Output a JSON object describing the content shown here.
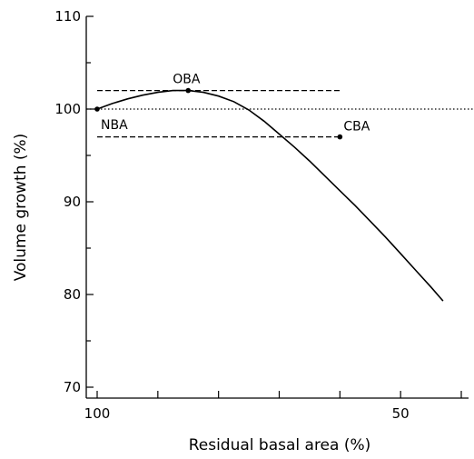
{
  "chart_data": {
    "type": "line",
    "title": "",
    "xlabel": "Residual basal area (%)",
    "ylabel": "Volume growth (%)",
    "x_reversed": true,
    "xlim": [
      100,
      40
    ],
    "ylim": [
      70,
      110
    ],
    "x_ticks": [
      100,
      90,
      80,
      70,
      60,
      50,
      40
    ],
    "x_tick_labels": [
      "100",
      "50"
    ],
    "x_tick_label_values": [
      100,
      50
    ],
    "y_ticks": [
      70,
      75,
      80,
      85,
      90,
      95,
      100,
      105,
      110
    ],
    "y_tick_labels": [
      "70",
      "80",
      "90",
      "100",
      "110"
    ],
    "y_tick_label_values": [
      70,
      80,
      90,
      100,
      110
    ],
    "grid": false,
    "legend": "none",
    "series": [
      {
        "x": [
          100,
          97.5,
          95,
          92.5,
          90,
          87.5,
          85,
          82.5,
          80,
          77.5,
          75,
          72.5,
          70,
          67.5,
          65,
          62.5,
          60,
          57.5,
          55,
          52.5,
          50,
          47.5,
          45,
          43
        ],
        "values": [
          100.0,
          100.6,
          101.1,
          101.5,
          101.8,
          102.0,
          102.0,
          101.8,
          101.4,
          100.8,
          99.9,
          98.7,
          97.3,
          95.9,
          94.4,
          92.8,
          91.2,
          89.6,
          87.9,
          86.2,
          84.4,
          82.6,
          80.8,
          79.3
        ],
        "color": "#000000"
      }
    ],
    "reference_lines": [
      {
        "orientation": "horizontal",
        "y": 100,
        "style": "dotted"
      },
      {
        "orientation": "horizontal",
        "y": 102,
        "x_from": 100,
        "x_to": 60,
        "style": "dashed"
      },
      {
        "orientation": "horizontal",
        "y": 97,
        "x_from": 100,
        "x_to": 60,
        "style": "dashed"
      }
    ],
    "annotations": [
      {
        "label": "NBA",
        "x": 100,
        "y": 100
      },
      {
        "label": "OBA",
        "x": 85,
        "y": 102
      },
      {
        "label": "CBA",
        "x": 60,
        "y": 97
      }
    ]
  }
}
